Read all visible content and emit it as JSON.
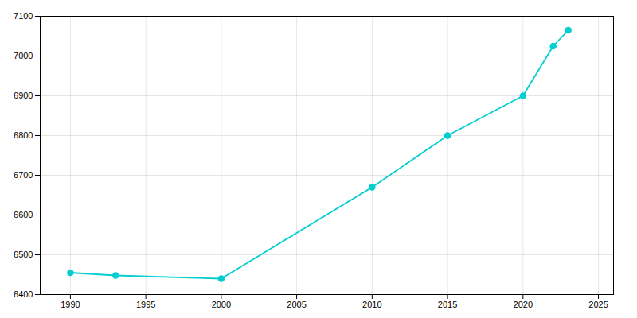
{
  "chart_data": {
    "type": "line",
    "x": [
      1990,
      1993,
      2000,
      2010,
      2015,
      2020,
      2022,
      2023
    ],
    "values": [
      6455,
      6448,
      6440,
      6670,
      6800,
      6900,
      7025,
      7065
    ],
    "color": "#00CED1",
    "marker": "circle",
    "xlim": [
      1988,
      2026
    ],
    "ylim": [
      6400,
      7100
    ],
    "xticks": [
      1990,
      1995,
      2000,
      2005,
      2010,
      2015,
      2020,
      2025
    ],
    "yticks": [
      6400,
      6500,
      6600,
      6700,
      6800,
      6900,
      7000,
      7100
    ],
    "grid": true
  }
}
